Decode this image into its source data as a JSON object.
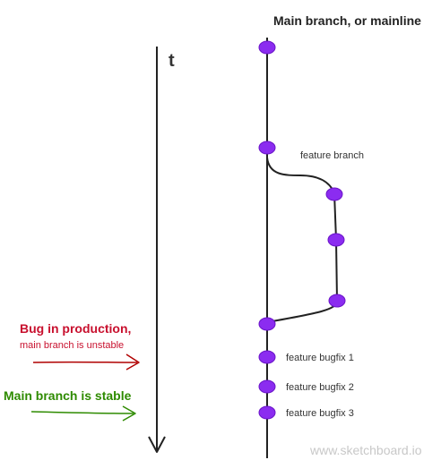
{
  "title": "Main branch, or mainline",
  "time_axis_label": "t",
  "labels": {
    "feature_branch": "feature branch",
    "bugfix_1": "feature bugfix 1",
    "bugfix_2": "feature bugfix 2",
    "bugfix_3": "feature bugfix 3"
  },
  "annotations": {
    "bug_title": "Bug in production,",
    "bug_subtitle": "main branch is unstable",
    "stable": "Main branch is stable"
  },
  "watermark": "www.sketchboard.io",
  "colors": {
    "node": "#8b2cf0",
    "node_stroke": "#6a14c8",
    "line": "#222222",
    "bug_red": "#c8102e",
    "arrow_red": "#b00000",
    "stable_green": "#2e8b00",
    "watermark": "#c8c8c8"
  }
}
